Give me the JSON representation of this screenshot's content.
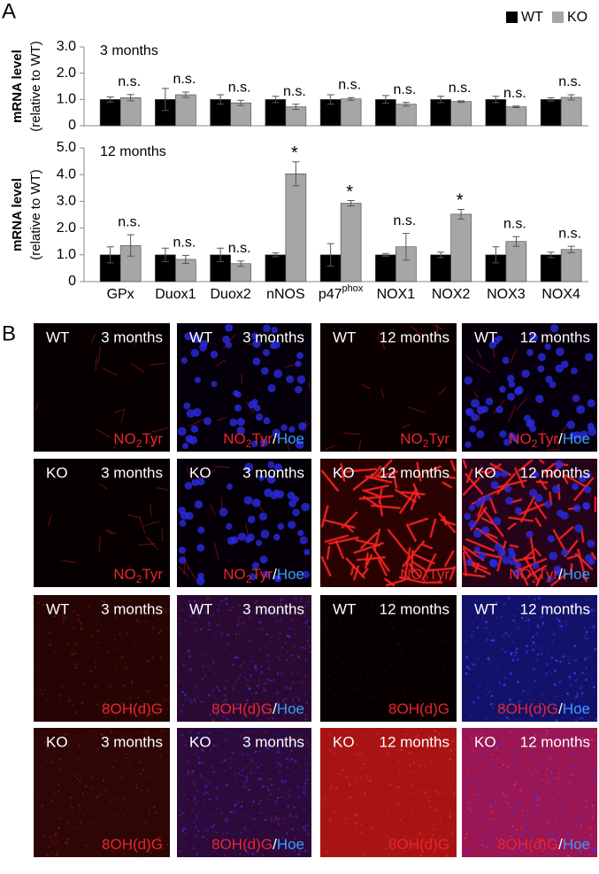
{
  "panel_labels": [
    "A",
    "B"
  ],
  "chart_data": [
    {
      "type": "bar",
      "subtitle": "3 months",
      "ylabel": "mRNA level",
      "ylabel_note": "(relative to WT)",
      "categories": [
        null,
        null,
        null,
        null,
        null,
        null,
        null,
        null,
        null
      ],
      "series": [
        {
          "name": "WT",
          "color": "#000000",
          "values": [
            1.0,
            1.0,
            1.0,
            1.0,
            1.0,
            1.0,
            1.0,
            1.0,
            1.0
          ],
          "errors": [
            0.1,
            0.42,
            0.18,
            0.12,
            0.18,
            0.15,
            0.12,
            0.12,
            0.06
          ]
        },
        {
          "name": "KO",
          "color": "#a6a6a6",
          "values": [
            1.07,
            1.18,
            0.87,
            0.72,
            1.02,
            0.82,
            0.92,
            0.72,
            1.08
          ],
          "errors": [
            0.12,
            0.1,
            0.1,
            0.1,
            0.05,
            0.07,
            0.03,
            0.03,
            0.1
          ]
        }
      ],
      "annotations": [
        "n.s.",
        "n.s.",
        "n.s.",
        "n.s.",
        "n.s.",
        "n.s.",
        "n.s.",
        "n.s.",
        "n.s."
      ],
      "ylim": [
        0,
        3
      ],
      "yticks": [
        0,
        {
          "value": 1,
          "label": "1.0"
        },
        {
          "value": 2,
          "label": "2.0"
        },
        {
          "value": 3,
          "label": "3.0"
        }
      ]
    },
    {
      "type": "bar",
      "subtitle": "12 months",
      "ylabel": "mRNA level",
      "ylabel_note": "(relative to WT)",
      "categories": [
        "GPx",
        "Duox1",
        "Duox2",
        "nNOS",
        "p47",
        "NOX1",
        "NOX2",
        "NOX3",
        "NOX4"
      ],
      "category_superscripts": [
        null,
        null,
        null,
        null,
        "phox",
        null,
        null,
        null,
        null
      ],
      "series": [
        {
          "color": "#000000",
          "values": [
            1.0,
            1.0,
            1.0,
            1.0,
            1.0,
            1.0,
            1.0,
            1.0,
            1.0
          ],
          "errors": [
            0.3,
            0.25,
            0.25,
            0.07,
            0.42,
            0.05,
            0.1,
            0.3,
            0.1
          ]
        },
        {
          "color": "#a6a6a6",
          "values": [
            1.35,
            0.83,
            0.67,
            4.03,
            2.93,
            1.3,
            2.52,
            1.5,
            1.2
          ],
          "errors": [
            0.4,
            0.15,
            0.1,
            0.45,
            0.1,
            0.5,
            0.18,
            0.18,
            0.12
          ]
        }
      ],
      "annotations": [
        "n.s.",
        "n.s.",
        "n.s.",
        "*",
        "*",
        "n.s.",
        "*",
        "n.s.",
        "n.s."
      ],
      "ylim": [
        0,
        5
      ],
      "yticks": [
        0,
        {
          "value": 1,
          "label": "1.0"
        },
        {
          "value": 2,
          "label": "2.0"
        },
        {
          "value": 3,
          "label": "3.0"
        },
        {
          "value": 4,
          "label": "4.0"
        },
        {
          "value": 5,
          "label": "5.0"
        }
      ]
    }
  ],
  "micrographs": [
    {
      "genotype": "WT",
      "age": "3 months",
      "stain": [
        "NO",
        "2",
        "Tyr"
      ]
    },
    {
      "genotype": "WT",
      "age": "3 months",
      "stain": [
        "NO",
        "2",
        "Tyr"
      ],
      "separator": "/",
      "counterstain": "Hoe"
    },
    {
      "genotype": "WT",
      "age": "12 months",
      "stain": [
        "NO",
        "2",
        "Tyr"
      ]
    },
    {
      "genotype": "WT",
      "age": "12 months",
      "stain": [
        "NO",
        "2",
        "Tyr"
      ],
      "separator": "/",
      "counterstain": "Hoe"
    },
    {
      "genotype": "KO",
      "age": "3 months",
      "stain": [
        "NO",
        "2",
        "Tyr"
      ]
    },
    {
      "genotype": "KO",
      "age": "3 months",
      "stain": [
        "NO",
        "2",
        "Tyr"
      ],
      "separator": "/",
      "counterstain": "Hoe"
    },
    {
      "genotype": "KO",
      "age": "12 months",
      "stain": [
        "NO",
        "2",
        "Tyr"
      ]
    },
    {
      "genotype": "KO",
      "age": "12 months",
      "stain": [
        "NO",
        "2",
        "Tyr"
      ],
      "separator": "/",
      "counterstain": "Hoe"
    },
    {
      "genotype": "WT",
      "age": "3 months",
      "stain": [
        "8OH(d)G"
      ]
    },
    {
      "genotype": "WT",
      "age": "3 months",
      "stain": [
        "8OH(d)G"
      ],
      "separator": "/",
      "counterstain": "Hoe"
    },
    {
      "genotype": "WT",
      "age": "12 months",
      "stain": [
        "8OH(d)G"
      ]
    },
    {
      "genotype": "WT",
      "age": "12 months",
      "stain": [
        "8OH(d)G"
      ],
      "separator": "/",
      "counterstain": "Hoe"
    },
    {
      "genotype": "KO",
      "age": "3 months",
      "stain": [
        "8OH(d)G"
      ]
    },
    {
      "genotype": "KO",
      "age": "3 months",
      "stain": [
        "8OH(d)G"
      ],
      "separator": "/",
      "counterstain": "Hoe"
    },
    {
      "genotype": "KO",
      "age": "12 months",
      "stain": [
        "8OH(d)G"
      ]
    },
    {
      "genotype": "KO",
      "age": "12 months",
      "stain": [
        "8OH(d)G"
      ],
      "separator": "/",
      "counterstain": "Hoe"
    }
  ]
}
